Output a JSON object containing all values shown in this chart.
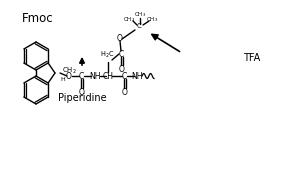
{
  "bg_color": "#ffffff",
  "title_fmoc": "Fmoc",
  "title_piperidine": "Piperidine",
  "title_tfa": "TFA",
  "fig_width": 2.9,
  "fig_height": 1.8,
  "dpi": 100
}
